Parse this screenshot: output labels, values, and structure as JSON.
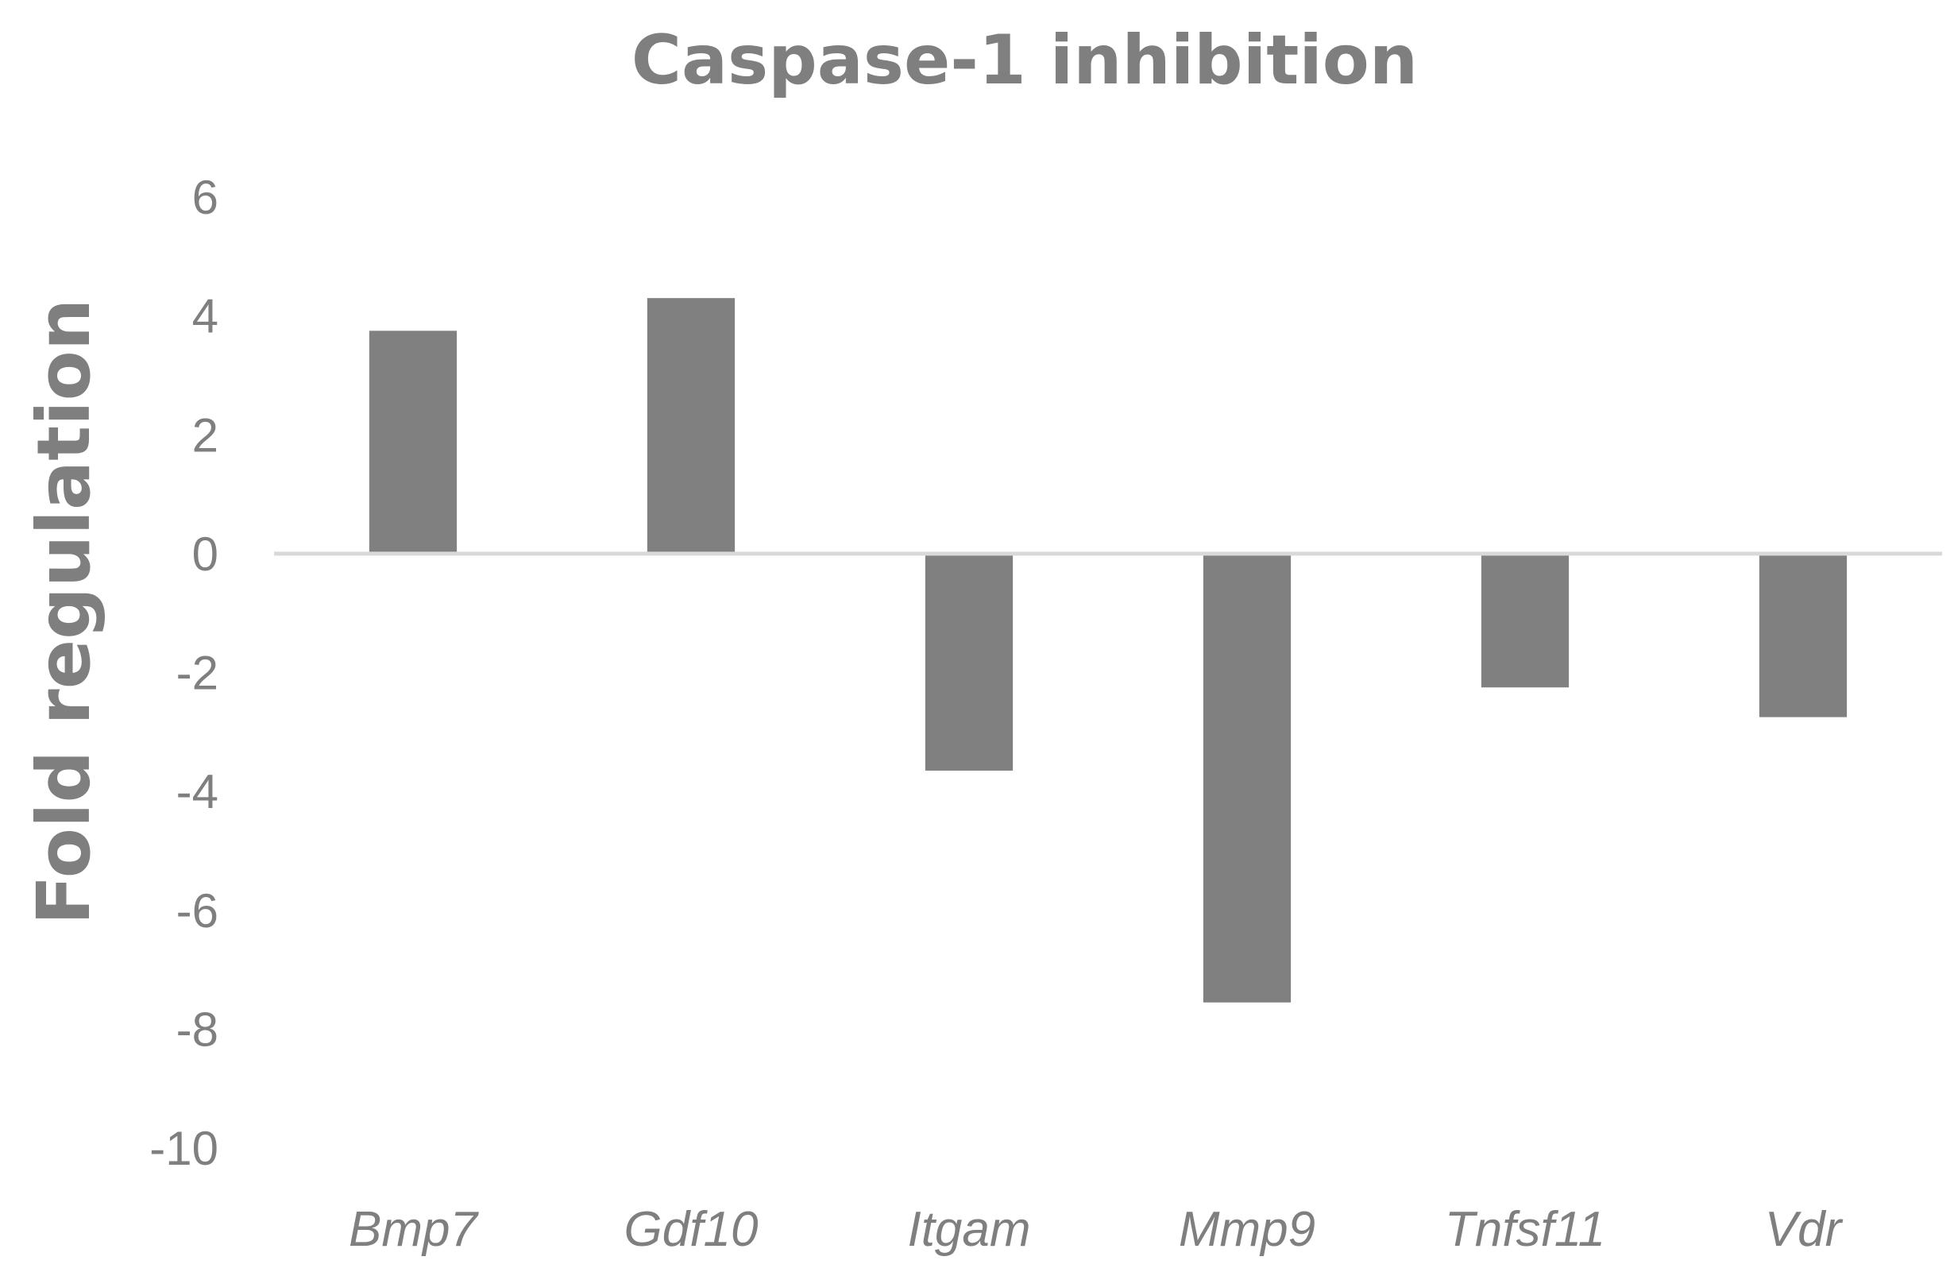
{
  "chart_data": {
    "type": "bar",
    "title": "Caspase-1 inhibition",
    "xlabel": "",
    "ylabel": "Fold regulation",
    "categories": [
      "Bmp7",
      "Gdf10",
      "Itgam",
      "Mmp9",
      "Tnfsf11",
      "Vdr"
    ],
    "values": [
      3.75,
      4.3,
      -3.65,
      -7.55,
      -2.25,
      -2.75
    ],
    "ylim": [
      -10,
      6
    ],
    "yticks": [
      "6",
      "4",
      "2",
      "0",
      "-2",
      "-4",
      "-6",
      "-8",
      "-10"
    ],
    "grid": false,
    "legend": "none",
    "colors": {
      "bar": "#808080",
      "axis": "#d9d9d9",
      "text": "#7f7f7f"
    }
  }
}
